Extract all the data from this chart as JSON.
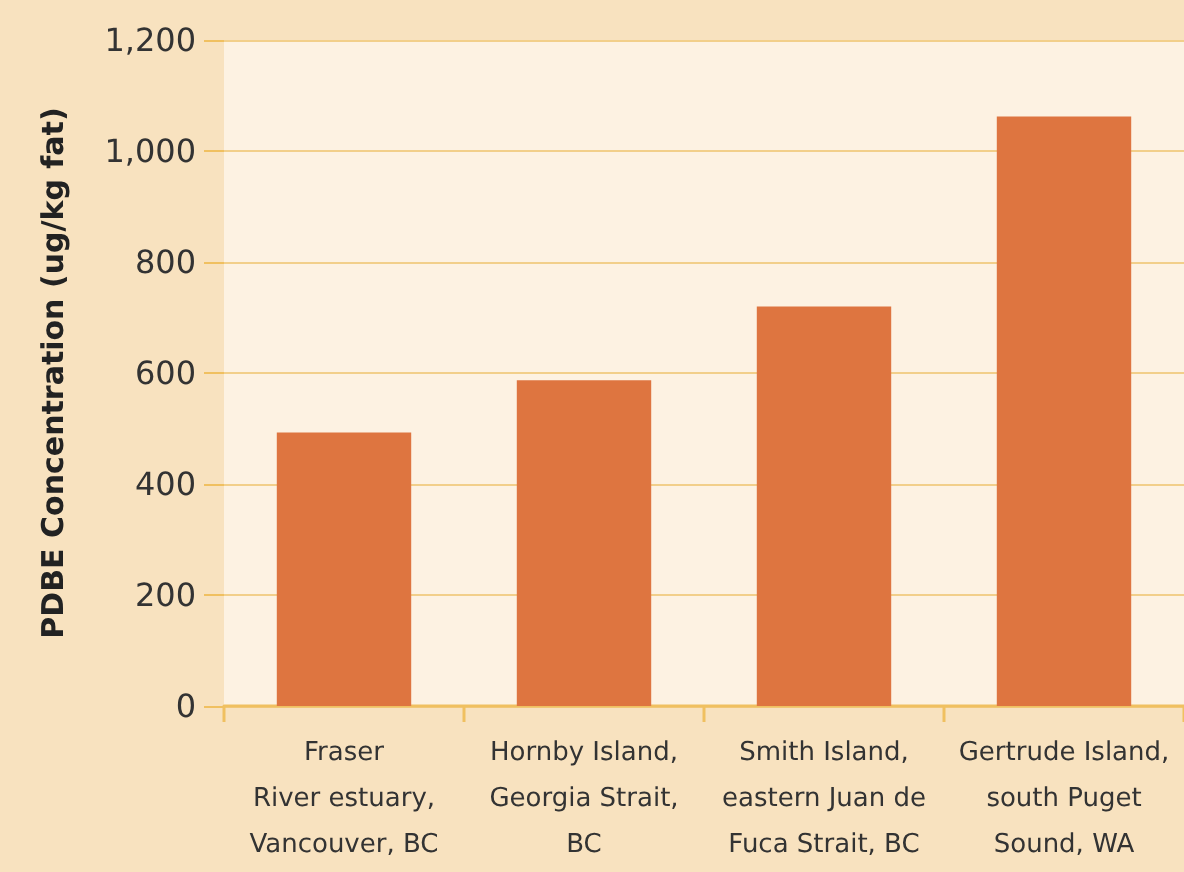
{
  "chart_data": {
    "type": "bar",
    "ylabel": "PDBE Concentration (ug/kg fat)",
    "categories": [
      "Fraser\nRiver estuary,\nVancouver, BC",
      "Hornby Island,\nGeorgia Strait,\nBC",
      "Smith Island,\neastern Juan de\nFuca Strait, BC",
      "Gertrude Island,\nsouth Puget\nSound, WA"
    ],
    "values": [
      493,
      587,
      720,
      1062
    ],
    "color": "#de7540",
    "ylim": [
      0,
      1200
    ],
    "yticks": [
      0,
      {
        "value": 200,
        "label": "200"
      },
      {
        "value": 400,
        "label": "400"
      },
      {
        "value": 600,
        "label": "600"
      },
      {
        "value": 800,
        "label": "800"
      },
      {
        "value": 1000,
        "label": "1,000"
      },
      {
        "value": 1200,
        "label": "1,200"
      }
    ],
    "grid": "y"
  }
}
